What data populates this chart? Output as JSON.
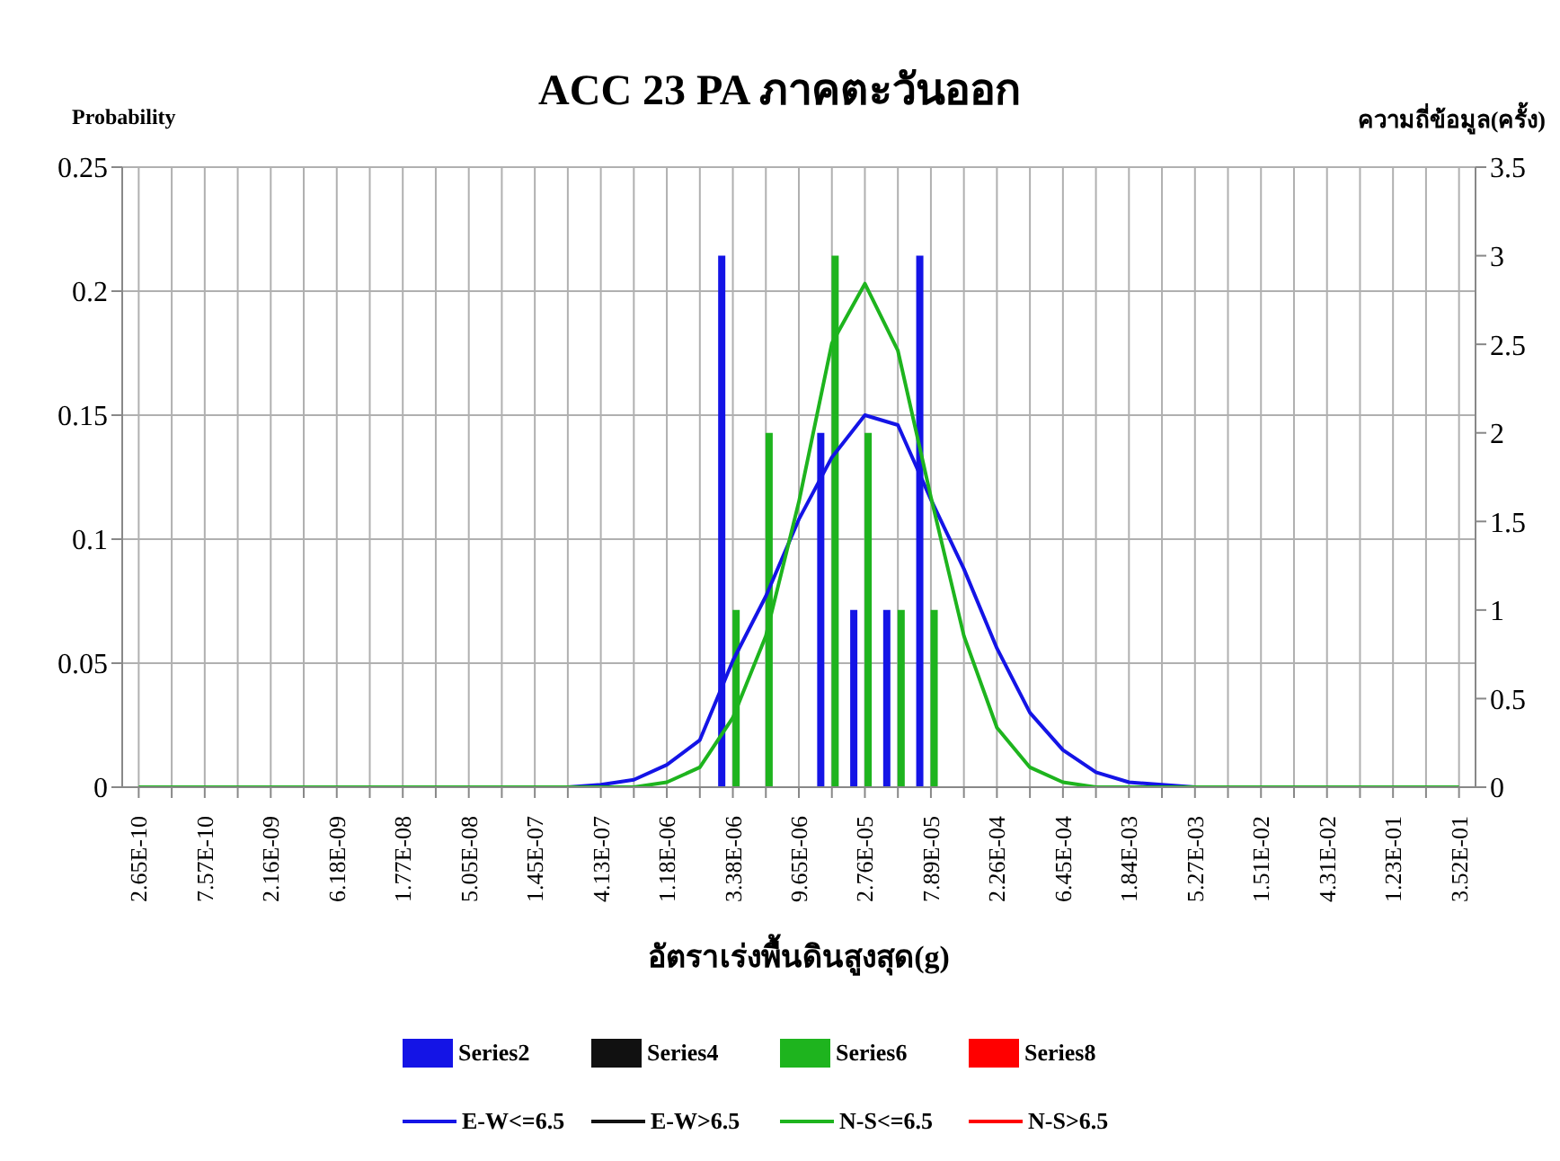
{
  "chart_data": {
    "type": "line",
    "title": "ACC 23 PA ภาคตะวันออก",
    "xlabel": "อัตราเร่งพื้นดินสูงสุด(g)",
    "ylabel": "Probability",
    "y2label": "ความถี่ข้อมูล(ครั้ง)",
    "categories": [
      "2.65E-10",
      null,
      "7.57E-10",
      null,
      "2.16E-09",
      null,
      "6.18E-09",
      null,
      "1.77E-08",
      null,
      "5.05E-08",
      null,
      "1.45E-07",
      null,
      "4.13E-07",
      null,
      "1.18E-06",
      null,
      "3.38E-06",
      null,
      "9.65E-06",
      null,
      "2.76E-05",
      null,
      "7.89E-05",
      null,
      "2.26E-04",
      null,
      "6.45E-04",
      null,
      "1.84E-03",
      null,
      "5.27E-03",
      null,
      "1.51E-02",
      null,
      "4.31E-02",
      null,
      "1.23E-01",
      null,
      "3.52E-01"
    ],
    "series": [
      {
        "name": "Series2",
        "type": "bar",
        "axis": "y2",
        "color": "#1414e6",
        "values": [
          null,
          null,
          null,
          null,
          null,
          null,
          null,
          null,
          null,
          null,
          null,
          null,
          null,
          null,
          null,
          null,
          null,
          null,
          3,
          null,
          null,
          2,
          1,
          1,
          3,
          null,
          null,
          null,
          null,
          null,
          null,
          null,
          null,
          null,
          null,
          null,
          null,
          null,
          null,
          null,
          null
        ]
      },
      {
        "name": "Series4",
        "type": "bar",
        "axis": "y2",
        "color": "#111111",
        "values": [
          null,
          null,
          null,
          null,
          null,
          null,
          null,
          null,
          null,
          null,
          null,
          null,
          null,
          null,
          null,
          null,
          null,
          null,
          null,
          null,
          null,
          null,
          null,
          null,
          null,
          null,
          null,
          null,
          null,
          null,
          null,
          null,
          null,
          null,
          null,
          null,
          null,
          null,
          null,
          null,
          null
        ]
      },
      {
        "name": "Series6",
        "type": "bar",
        "axis": "y2",
        "color": "#1eb41e",
        "values": [
          null,
          null,
          null,
          null,
          null,
          null,
          null,
          null,
          null,
          null,
          null,
          null,
          null,
          null,
          null,
          null,
          null,
          null,
          1,
          2,
          null,
          3,
          2,
          1,
          1,
          null,
          null,
          null,
          null,
          null,
          null,
          null,
          null,
          null,
          null,
          null,
          null,
          null,
          null,
          null,
          null
        ]
      },
      {
        "name": "Series8",
        "type": "bar",
        "axis": "y2",
        "color": "#ff0000",
        "values": [
          null,
          null,
          null,
          null,
          null,
          null,
          null,
          null,
          null,
          null,
          null,
          null,
          null,
          null,
          null,
          null,
          null,
          null,
          null,
          null,
          null,
          null,
          null,
          null,
          null,
          null,
          null,
          null,
          null,
          null,
          null,
          null,
          null,
          null,
          null,
          null,
          null,
          null,
          null,
          null,
          null
        ]
      },
      {
        "name": "E-W<=6.5",
        "color": "#1414e6",
        "values": [
          null,
          null,
          null,
          null,
          null,
          null,
          null,
          null,
          null,
          null,
          null,
          null,
          null,
          0,
          0.001,
          0.003,
          0.009,
          0.019,
          0.051,
          0.077,
          0.108,
          0.133,
          0.15,
          0.146,
          0.116,
          0.088,
          0.056,
          0.03,
          0.015,
          0.006,
          0.002,
          0.001,
          0,
          null,
          null,
          null,
          null,
          null,
          null,
          null,
          null
        ]
      },
      {
        "name": "E-W>6.5",
        "color": "#111111",
        "values": [
          null,
          null,
          null,
          null,
          null,
          null,
          null,
          null,
          null,
          null,
          null,
          null,
          null,
          null,
          null,
          null,
          null,
          null,
          null,
          null,
          null,
          null,
          null,
          null,
          null,
          null,
          null,
          null,
          null,
          null,
          null,
          null,
          null,
          null,
          null,
          null,
          null,
          null,
          null,
          null,
          null
        ]
      },
      {
        "name": "N-S<=6.5",
        "color": "#1eb41e",
        "values": [
          0,
          0,
          0,
          0,
          0,
          0,
          0,
          0,
          0,
          0,
          0,
          0,
          0,
          0,
          0,
          0,
          0.002,
          0.008,
          0.028,
          0.061,
          0.115,
          0.179,
          0.203,
          0.176,
          0.117,
          0.061,
          0.024,
          0.008,
          0.002,
          0,
          0,
          0,
          0,
          0,
          0,
          0,
          0,
          0,
          0,
          0,
          0
        ]
      },
      {
        "name": "N-S>6.5",
        "color": "#ff0000",
        "values": [
          null,
          null,
          null,
          null,
          null,
          null,
          null,
          null,
          null,
          null,
          null,
          null,
          null,
          null,
          null,
          null,
          null,
          null,
          null,
          null,
          null,
          null,
          null,
          null,
          null,
          null,
          null,
          null,
          null,
          null,
          null,
          null,
          null,
          null,
          null,
          null,
          null,
          null,
          null,
          null,
          null
        ]
      }
    ],
    "ylim": [
      0,
      0.25
    ],
    "yticks": [
      0,
      0.05,
      0.1,
      0.15,
      0.2,
      0.25
    ],
    "y2lim": [
      0,
      3.5
    ],
    "y2ticks": [
      0,
      0.5,
      1,
      1.5,
      2,
      2.5,
      3,
      3.5
    ],
    "grid": true,
    "legend": "bottom",
    "marker": "none",
    "line_style": "solid"
  }
}
